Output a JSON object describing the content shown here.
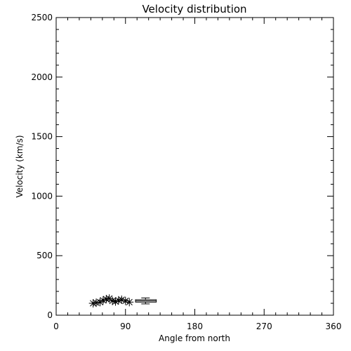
{
  "chart_data": {
    "type": "scatter",
    "title": "Velocity distribution",
    "xlabel": "Angle from north",
    "ylabel": "Velocity (km/s)",
    "xlim": [
      0,
      360
    ],
    "ylim": [
      0,
      2500
    ],
    "xticks": [
      0,
      90,
      180,
      270,
      360
    ],
    "yticks": [
      0,
      500,
      1000,
      1500,
      2000,
      2500
    ],
    "x_minor_step": 15,
    "y_minor_step": 100,
    "grid": false,
    "marker": "asterisk",
    "color": "#000000",
    "series": [
      {
        "points": [
          {
            "x": 48,
            "y": 100
          },
          {
            "x": 52,
            "y": 105
          },
          {
            "x": 57,
            "y": 110
          },
          {
            "x": 61,
            "y": 125
          },
          {
            "x": 65,
            "y": 135
          },
          {
            "x": 69,
            "y": 140
          },
          {
            "x": 73,
            "y": 120
          },
          {
            "x": 77,
            "y": 115
          },
          {
            "x": 81,
            "y": 125
          },
          {
            "x": 85,
            "y": 130
          },
          {
            "x": 90,
            "y": 120
          },
          {
            "x": 95,
            "y": 110
          }
        ]
      }
    ],
    "boxplot": {
      "x_min": 103,
      "x_max": 130,
      "q1": 110,
      "q3": 130,
      "median": 120,
      "whisker_low": 95,
      "whisker_high": 145,
      "whisker_x": 116
    }
  }
}
